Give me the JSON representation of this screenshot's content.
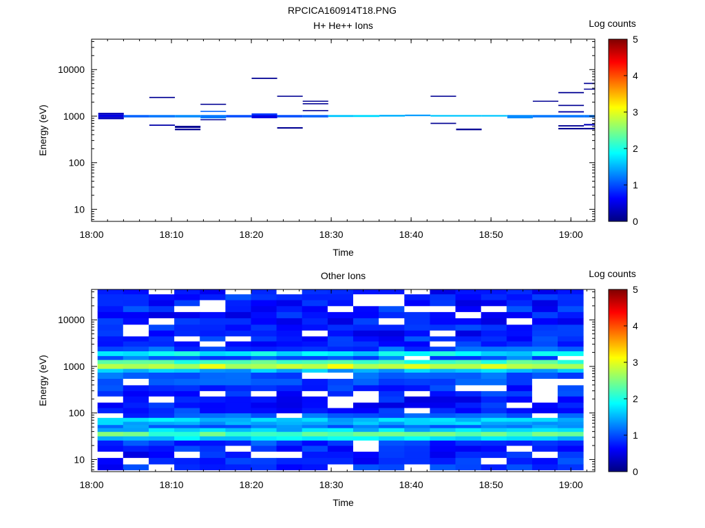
{
  "figure_title": "RPCICA160914T18.PNG",
  "colormap_stops": [
    "#00007f",
    "#0000ff",
    "#0080ff",
    "#00ffff",
    "#80ff80",
    "#ffff00",
    "#ff8000",
    "#ff0000",
    "#7f0000"
  ],
  "chart_data": [
    {
      "type": "heatmap",
      "title": "H+ He++ Ions",
      "xlabel": "Time",
      "ylabel": "Energy (eV)",
      "y_scale": "log",
      "ylim": [
        5.5,
        45000
      ],
      "xlim": [
        "18:00",
        "19:03"
      ],
      "x_ticks": [
        "18:00",
        "18:10",
        "18:20",
        "18:30",
        "18:40",
        "18:50",
        "19:00"
      ],
      "y_ticks": [
        "10",
        "100",
        "1000",
        "10000"
      ],
      "colorbar": {
        "label": "Log counts",
        "min": 0,
        "max": 5,
        "ticks": [
          "0",
          "1",
          "2",
          "3",
          "4",
          "5"
        ]
      },
      "time_bins": [
        "18:00:50",
        "18:04:02",
        "18:07:14",
        "18:10:26",
        "18:13:38",
        "18:16:50",
        "18:20:02",
        "18:23:14",
        "18:26:26",
        "18:29:38",
        "18:32:50",
        "18:36:02",
        "18:39:14",
        "18:42:26",
        "18:45:38",
        "18:48:50",
        "18:52:02",
        "18:55:14",
        "18:58:26",
        "19:01:38"
      ],
      "cells": [
        [
          0,
          860,
          960,
          0.3
        ],
        [
          0,
          960,
          1080,
          0.5
        ],
        [
          0,
          1080,
          1180,
          0.3
        ],
        [
          1,
          940,
          1060,
          1.1
        ],
        [
          2,
          940,
          1060,
          1.2
        ],
        [
          2,
          2450,
          2600,
          0.1
        ],
        [
          2,
          620,
          660,
          0.2
        ],
        [
          3,
          940,
          1060,
          1.3
        ],
        [
          3,
          560,
          620,
          0.1
        ],
        [
          3,
          500,
          540,
          0.1
        ],
        [
          4,
          900,
          1060,
          1.2
        ],
        [
          4,
          820,
          860,
          0.1
        ],
        [
          4,
          1230,
          1300,
          1.1
        ],
        [
          4,
          1750,
          1850,
          0.1
        ],
        [
          5,
          940,
          1060,
          1.0
        ],
        [
          6,
          900,
          1050,
          0.5
        ],
        [
          6,
          1050,
          1150,
          0.9
        ],
        [
          6,
          6300,
          6700,
          0.1
        ],
        [
          7,
          940,
          1060,
          1.0
        ],
        [
          7,
          2600,
          2750,
          0.1
        ],
        [
          7,
          540,
          580,
          0.1
        ],
        [
          8,
          940,
          1060,
          1.1
        ],
        [
          8,
          1800,
          1900,
          0.1
        ],
        [
          8,
          1280,
          1350,
          0.1
        ],
        [
          8,
          2050,
          2150,
          0.1
        ],
        [
          9,
          960,
          1060,
          1.6
        ],
        [
          10,
          960,
          1060,
          1.7
        ],
        [
          11,
          980,
          1070,
          1.5
        ],
        [
          12,
          1000,
          1080,
          1.4
        ],
        [
          13,
          980,
          1060,
          1.6
        ],
        [
          13,
          2600,
          2750,
          0.1
        ],
        [
          13,
          680,
          720,
          0.1
        ],
        [
          14,
          980,
          1060,
          1.6
        ],
        [
          14,
          500,
          540,
          0.1
        ],
        [
          15,
          980,
          1060,
          1.6
        ],
        [
          16,
          900,
          1060,
          1.3
        ],
        [
          17,
          940,
          1060,
          1.2
        ],
        [
          17,
          2050,
          2150,
          0.1
        ],
        [
          18,
          940,
          1060,
          1.2
        ],
        [
          18,
          3100,
          3300,
          0.1
        ],
        [
          18,
          1650,
          1750,
          0.1
        ],
        [
          18,
          1200,
          1280,
          0.2
        ],
        [
          18,
          600,
          640,
          0.1
        ],
        [
          18,
          520,
          560,
          0.1
        ],
        [
          19,
          940,
          1060,
          1.2
        ],
        [
          19,
          4900,
          5200,
          0.1
        ],
        [
          19,
          3700,
          3900,
          0.1
        ],
        [
          19,
          630,
          680,
          0.3
        ],
        [
          19,
          520,
          560,
          0.1
        ]
      ]
    },
    {
      "type": "heatmap",
      "title": "Other Ions",
      "xlabel": "Time",
      "ylabel": "Energy (eV)",
      "y_scale": "log",
      "ylim": [
        5.5,
        45000
      ],
      "xlim": [
        "18:00",
        "19:03"
      ],
      "x_ticks": [
        "18:00",
        "18:10",
        "18:20",
        "18:30",
        "18:40",
        "18:50",
        "19:00"
      ],
      "y_ticks": [
        "10",
        "100",
        "1000",
        "10000"
      ],
      "colorbar": {
        "label": "Log counts",
        "min": 0,
        "max": 5,
        "ticks": [
          "0",
          "1",
          "2",
          "3",
          "4",
          "5"
        ]
      },
      "energy_profile": [
        [
          6,
          8,
          0.8
        ],
        [
          8,
          11,
          0.8
        ],
        [
          11,
          15,
          0.7
        ],
        [
          15,
          20,
          0.8
        ],
        [
          20,
          26,
          0.9
        ],
        [
          26,
          32,
          1.7
        ],
        [
          32,
          40,
          2.3
        ],
        [
          40,
          48,
          1.6
        ],
        [
          48,
          56,
          1.2
        ],
        [
          56,
          66,
          1.5
        ],
        [
          66,
          80,
          1.6
        ],
        [
          80,
          100,
          1.0
        ],
        [
          100,
          130,
          0.8
        ],
        [
          130,
          170,
          0.7
        ],
        [
          170,
          230,
          0.7
        ],
        [
          230,
          300,
          0.8
        ],
        [
          300,
          400,
          0.8
        ],
        [
          400,
          550,
          0.9
        ],
        [
          550,
          750,
          1.1
        ],
        [
          750,
          900,
          1.5
        ],
        [
          900,
          1150,
          2.9
        ],
        [
          1150,
          1400,
          2.2
        ],
        [
          1400,
          1700,
          1.1
        ],
        [
          1700,
          2150,
          1.8
        ],
        [
          2150,
          2700,
          1.0
        ],
        [
          2700,
          3500,
          0.8
        ],
        [
          3500,
          4500,
          0.8
        ],
        [
          4500,
          6000,
          0.7
        ],
        [
          6000,
          8000,
          0.8
        ],
        [
          8000,
          11000,
          0.7
        ],
        [
          11000,
          15000,
          0.7
        ],
        [
          15000,
          20000,
          0.8
        ],
        [
          20000,
          27000,
          0.7
        ],
        [
          27000,
          36000,
          0.8
        ],
        [
          36000,
          45000,
          0.7
        ]
      ]
    }
  ]
}
